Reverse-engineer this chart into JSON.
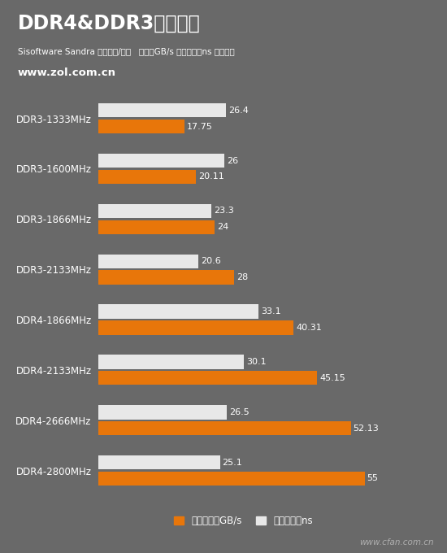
{
  "title": "DDR4&DDR3对比测试",
  "subtitle": "Sisoftware Sandra 内存带宽/延迟   单位：GB/s 越大越好；ns 越小越好",
  "website": "www.zol.com.cn",
  "watermark": "www.cfan.com.cn",
  "categories": [
    "DDR3-1333MHz",
    "DDR3-1600MHz",
    "DDR3-1866MHz",
    "DDR3-2133MHz",
    "DDR4-1866MHz",
    "DDR4-2133MHz",
    "DDR4-2666MHz",
    "DDR4-2800MHz"
  ],
  "bandwidth": [
    17.75,
    20.11,
    24,
    28,
    40.31,
    45.15,
    52.13,
    55
  ],
  "latency": [
    26.4,
    26,
    23.3,
    20.6,
    33.1,
    30.1,
    26.5,
    25.1
  ],
  "bandwidth_color": "#E8760A",
  "latency_color": "#E8E8E8",
  "bg_color": "#696969",
  "text_color": "#ffffff",
  "bar_value_color": "#ffffff",
  "max_val": 60,
  "legend_bandwidth": "内存带宽：GB/s",
  "legend_latency": "内存延迟：ns"
}
